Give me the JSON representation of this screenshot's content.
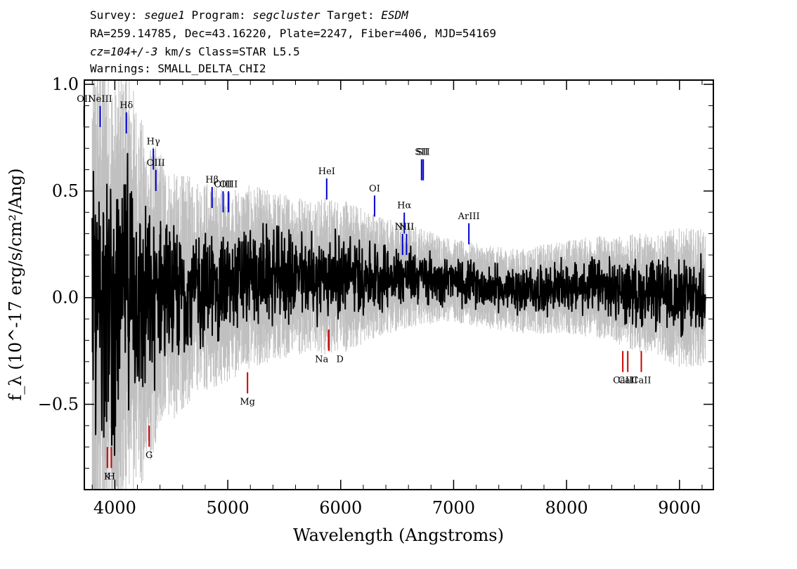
{
  "header": {
    "survey_label": "Survey:",
    "survey": "segue1",
    "program_label": "Program:",
    "program": "segcluster",
    "target_label": "Target:",
    "target": "ESDM",
    "line2": "RA=259.14785, Dec=43.16220, Plate=2247, Fiber=406, MJD=54169",
    "cz": "cz=104+/-3",
    "cz_unit": "km/s",
    "class": "Class=STAR L5.5",
    "warnings": "Warnings: SMALL_DELTA_CHI2"
  },
  "chart_data": {
    "type": "line",
    "title": "",
    "xlabel": "Wavelength (Angstroms)",
    "ylabel": "f_λ (10^-17 erg/s/cm²/Ang)",
    "xlim": [
      3730,
      9300
    ],
    "ylim": [
      -0.9,
      1.02
    ],
    "xticks": [
      4000,
      5000,
      6000,
      7000,
      8000,
      9000
    ],
    "xtick_labels": [
      "4000",
      "5000",
      "6000",
      "7000",
      "8000",
      "9000"
    ],
    "yticks": [
      -0.5,
      0.0,
      0.5,
      1.0
    ],
    "ytick_labels": [
      "−0.5",
      "0.0",
      "0.5",
      "1.0"
    ],
    "grid": false,
    "series": [
      {
        "role": "error",
        "color": "#c0c0c0",
        "x": [
          3800,
          3900,
          4000,
          4100,
          4200,
          4300,
          4400,
          4500,
          4700,
          5000,
          5500,
          6000,
          6500,
          7000,
          7500,
          8000,
          8500,
          9000,
          9230
        ],
        "y": [
          0.95,
          0.9,
          0.85,
          0.8,
          0.7,
          0.6,
          0.5,
          0.45,
          0.4,
          0.35,
          0.3,
          0.28,
          0.2,
          0.15,
          0.15,
          0.17,
          0.2,
          0.25,
          0.25
        ]
      },
      {
        "role": "flux",
        "color": "#000000",
        "x": [
          3800,
          3900,
          4000,
          4100,
          4200,
          4300,
          4400,
          4500,
          4700,
          5000,
          5200,
          5500,
          5800,
          6000,
          6300,
          6500,
          6700,
          7000,
          7300,
          7600,
          8000,
          8300,
          8500,
          8700,
          9000,
          9230
        ],
        "y": [
          -0.1,
          0.05,
          -0.1,
          0.1,
          0.0,
          -0.05,
          0.05,
          0.0,
          0.05,
          0.05,
          0.1,
          0.1,
          0.1,
          0.1,
          0.1,
          0.1,
          0.1,
          0.08,
          0.05,
          0.03,
          0.05,
          0.05,
          0.03,
          0.02,
          0.0,
          0.0
        ]
      }
    ],
    "emission_lines": [
      {
        "label": "OII",
        "wave": 3728,
        "y": 0.8,
        "color": "#000000"
      },
      {
        "label": "NeIII",
        "wave": 3870,
        "y": 0.8,
        "color": "#0000cc"
      },
      {
        "label": "Hδ",
        "wave": 4102,
        "y": 0.77,
        "color": "#0000cc"
      },
      {
        "label": "Hγ",
        "wave": 4341,
        "y": 0.6,
        "color": "#0000cc"
      },
      {
        "label": "OIII",
        "wave": 4363,
        "y": 0.5,
        "color": "#0000cc"
      },
      {
        "label": "Hβ",
        "wave": 4861,
        "y": 0.42,
        "color": "#0000cc"
      },
      {
        "label": "OIII",
        "wave": 4959,
        "y": 0.4,
        "color": "#0000cc"
      },
      {
        "label": "OIII",
        "wave": 5007,
        "y": 0.4,
        "color": "#0000cc"
      },
      {
        "label": "HeI",
        "wave": 5876,
        "y": 0.46,
        "color": "#0000cc"
      },
      {
        "label": "OI",
        "wave": 6300,
        "y": 0.38,
        "color": "#0000cc"
      },
      {
        "label": "NII",
        "wave": 6548,
        "y": 0.2,
        "color": "#0000cc"
      },
      {
        "label": "Hα",
        "wave": 6563,
        "y": 0.3,
        "color": "#0000cc"
      },
      {
        "label": "NII",
        "wave": 6583,
        "y": 0.2,
        "color": "#0000cc"
      },
      {
        "label": "SII",
        "wave": 6716,
        "y": 0.55,
        "color": "#0000cc"
      },
      {
        "label": "SII",
        "wave": 6731,
        "y": 0.55,
        "color": "#0000cc"
      },
      {
        "label": "ArIII",
        "wave": 7135,
        "y": 0.25,
        "color": "#0000cc"
      }
    ],
    "absorption_lines": [
      {
        "label": "K",
        "wave": 3934,
        "y": -0.7,
        "color": "#cc0000"
      },
      {
        "label": "H",
        "wave": 3969,
        "y": -0.7,
        "color": "#cc0000"
      },
      {
        "label": "G",
        "wave": 4304,
        "y": -0.6,
        "color": "#cc0000"
      },
      {
        "label": "Mg",
        "wave": 5175,
        "y": -0.35,
        "color": "#cc0000"
      },
      {
        "label": "Na",
        "wave": 5894,
        "y": -0.15,
        "color": "#cc0000"
      },
      {
        "label": "D",
        "wave": 5894,
        "y": -0.15,
        "color": "#cc0000"
      },
      {
        "label": "CaII",
        "wave": 8498,
        "y": -0.25,
        "color": "#cc0000"
      },
      {
        "label": "CaII",
        "wave": 8542,
        "y": -0.25,
        "color": "#cc0000"
      },
      {
        "label": "CaII",
        "wave": 8662,
        "y": -0.25,
        "color": "#cc0000"
      }
    ]
  }
}
